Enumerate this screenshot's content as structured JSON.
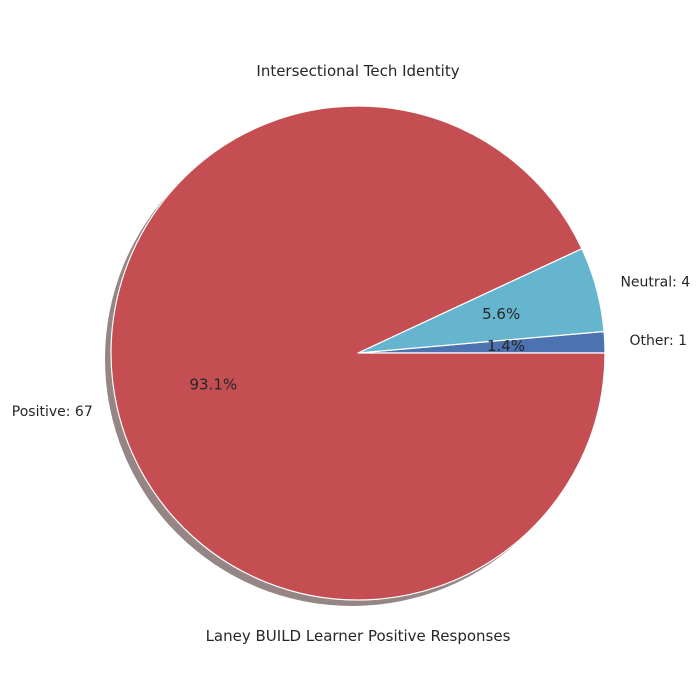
{
  "chart_data": {
    "type": "pie",
    "title": "Intersectional Tech Identity",
    "xlabel": "Laney BUILD Learner Positive Responses",
    "shadow": true,
    "start_angle_deg": 0,
    "direction": "counterclockwise",
    "slices": [
      {
        "name": "Other",
        "value": 1,
        "label": "Other: 1",
        "pct_label": "1.4%",
        "color": "#4c72b0"
      },
      {
        "name": "Neutral",
        "value": 4,
        "label": "Neutral: 4",
        "pct_label": "5.6%",
        "color": "#64b5cd"
      },
      {
        "name": "Positive",
        "value": 67,
        "label": "Positive: 67",
        "pct_label": "93.1%",
        "color": "#c44e52"
      }
    ],
    "colors": {
      "shadow": "#8a7878",
      "edge": "#ffffff"
    }
  }
}
